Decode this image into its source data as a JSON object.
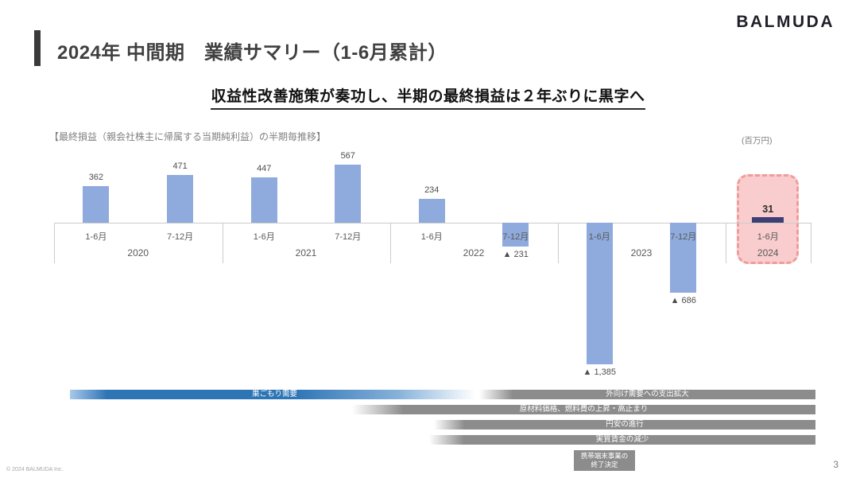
{
  "header": {
    "title": "2024年 中間期　業績サマリー（1-6月累計）",
    "logo": "BALMUDA"
  },
  "headline": "収益性改善施策が奏功し、半期の最終損益は２年ぶりに黒字へ",
  "chart": {
    "caption": "【最終損益（親会社株主に帰属する当期純利益）の半期毎推移】",
    "unit_label": "(百万円)"
  },
  "chart_data": {
    "type": "bar",
    "title": "最終損益（親会社株主に帰属する当期純利益）の半期毎推移",
    "unit": "百万円",
    "negative_marker": "▲",
    "grid": false,
    "ylim": [
      -1500,
      700
    ],
    "bar_color": "#8FAADC",
    "highlight_bar_color": "#3F3F76",
    "highlight_box_fill": "#F9CDCD",
    "highlight_box_border": "#F09C9C",
    "categories": [
      "2020 1-6月",
      "2020 7-12月",
      "2021 1-6月",
      "2021 7-12月",
      "2022 1-6月",
      "2022 7-12月",
      "2023 1-6月",
      "2023 7-12月",
      "2024 1-6月"
    ],
    "values": [
      362,
      471,
      447,
      567,
      234,
      -231,
      -1385,
      -686,
      31
    ],
    "groups": [
      {
        "year": "2020",
        "periods": [
          "1-6月",
          "7-12月"
        ],
        "values": [
          362,
          471
        ]
      },
      {
        "year": "2021",
        "periods": [
          "1-6月",
          "7-12月"
        ],
        "values": [
          447,
          567
        ]
      },
      {
        "year": "2022",
        "periods": [
          "1-6月",
          "7-12月"
        ],
        "values": [
          234,
          -231
        ]
      },
      {
        "year": "2023",
        "periods": [
          "1-6月",
          "7-12月"
        ],
        "values": [
          -1385,
          -686
        ]
      },
      {
        "year": "2024",
        "periods": [
          "1-6月"
        ],
        "values": [
          31
        ],
        "highlight": true
      }
    ],
    "value_labels": [
      "362",
      "471",
      "447",
      "567",
      "234",
      "▲ 231",
      "▲ 1,385",
      "▲ 686",
      "31"
    ]
  },
  "factors": [
    {
      "label": "巣ごもり需要",
      "color": "#2E75B6"
    },
    {
      "label": "外向け需要への支出拡大",
      "color": "#8C8C8C"
    },
    {
      "label": "原材料価格、燃料費の上昇・高止まり",
      "color": "#8C8C8C"
    },
    {
      "label": "円安の進行",
      "color": "#8C8C8C"
    },
    {
      "label": "実質賃金の減少",
      "color": "#8C8C8C"
    },
    {
      "label": "携帯端末事業の\n終了決定",
      "color": "#8C8C8C"
    }
  ],
  "footer": {
    "copyright": "© 2024 BALMUDA Inc.",
    "page_number": "3"
  }
}
